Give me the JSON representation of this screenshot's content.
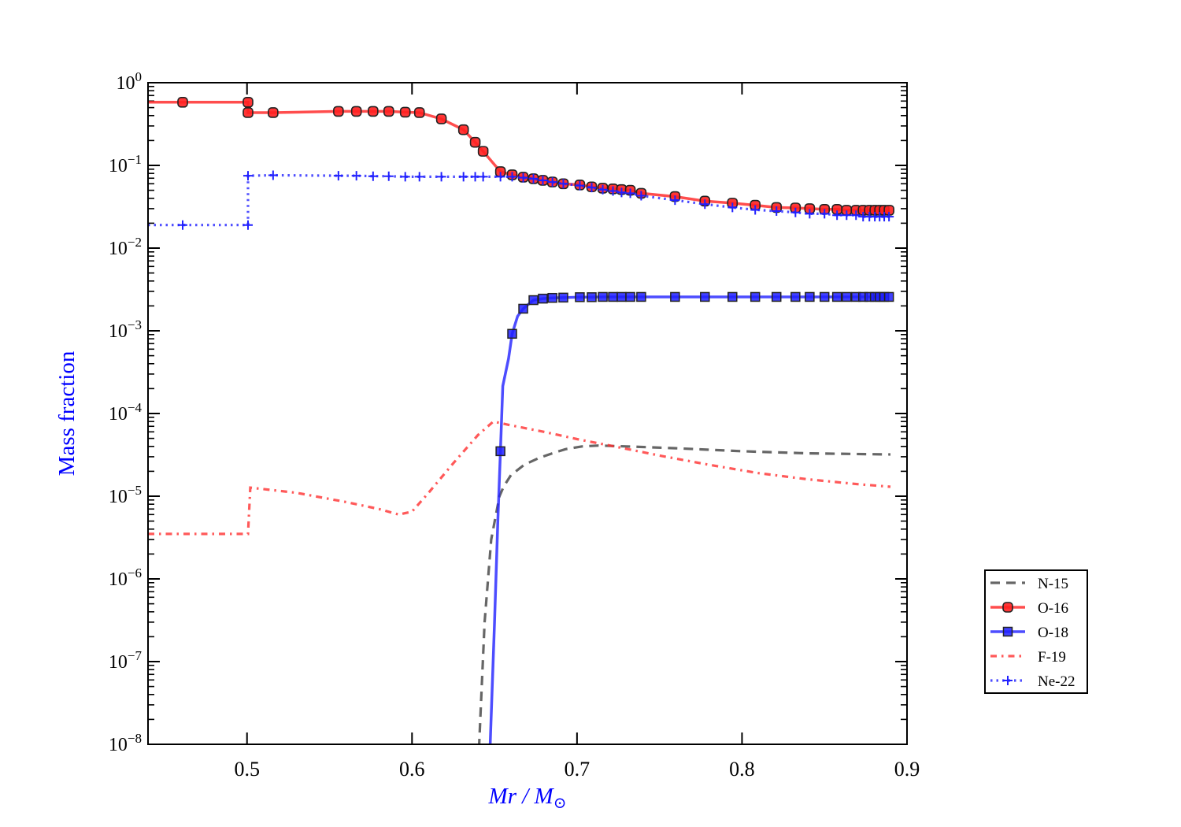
{
  "chart_data": {
    "type": "line",
    "xlabel": "Mr / M",
    "xlabel_sub": "⊙",
    "ylabel": "Mass fraction",
    "label_color": "#0000ff",
    "xlim": [
      0.44,
      0.9
    ],
    "ylim": [
      1e-08,
      1
    ],
    "yscale": "log",
    "xticks": [
      0.5,
      0.6,
      0.7,
      0.8,
      0.9
    ],
    "xtick_labels": [
      "0.5",
      "0.6",
      "0.7",
      "0.8",
      "0.9"
    ],
    "yticks": [
      0,
      -1,
      -2,
      -3,
      -4,
      -5,
      -6,
      -7,
      -8
    ],
    "ytick_labels": [
      "0",
      "−1",
      "−2",
      "−3",
      "−4",
      "−5",
      "−6",
      "−7",
      "−8"
    ],
    "ytick_base": "10",
    "grid": false,
    "legend_placement": "outside-right-bottom",
    "series": [
      {
        "name": "N-15",
        "color": "#404040",
        "style": "dashed",
        "marker": "none",
        "x": [
          0.64,
          0.6407,
          0.644,
          0.648,
          0.653,
          0.6555,
          0.66,
          0.668,
          0.677,
          0.685,
          0.693,
          0.703,
          0.713,
          0.73,
          0.76,
          0.8,
          0.84,
          0.89
        ],
        "y": [
          1e-09,
          1e-08,
          3e-07,
          3e-06,
          1e-05,
          1.3e-05,
          1.8e-05,
          2.4e-05,
          2.9e-05,
          3.3e-05,
          3.7e-05,
          4e-05,
          4.1e-05,
          4e-05,
          3.8e-05,
          3.5e-05,
          3.3e-05,
          3.2e-05
        ]
      },
      {
        "name": "O-16",
        "color": "#ff2020",
        "style": "solid",
        "marker": "circle",
        "x": [
          0.44,
          0.461,
          0.5006,
          0.5006,
          0.5158,
          0.5554,
          0.5663,
          0.5764,
          0.5859,
          0.5959,
          0.6045,
          0.6178,
          0.6312,
          0.6383,
          0.6431,
          0.6536,
          0.6607,
          0.6674,
          0.6736,
          0.6793,
          0.6851,
          0.6917,
          0.7017,
          0.7089,
          0.7156,
          0.7218,
          0.727,
          0.7323,
          0.7389,
          0.7594,
          0.7775,
          0.7942,
          0.808,
          0.8209,
          0.8324,
          0.841,
          0.85,
          0.8576,
          0.8634,
          0.8691,
          0.8734,
          0.8772,
          0.8805,
          0.8834,
          0.8862,
          0.8891
        ],
        "y": [
          0.58,
          0.58,
          0.58,
          0.435,
          0.435,
          0.45,
          0.45,
          0.45,
          0.45,
          0.44,
          0.435,
          0.365,
          0.27,
          0.19,
          0.148,
          0.084,
          0.077,
          0.072,
          0.069,
          0.066,
          0.063,
          0.06,
          0.058,
          0.055,
          0.053,
          0.052,
          0.051,
          0.05,
          0.046,
          0.042,
          0.037,
          0.035,
          0.033,
          0.031,
          0.0306,
          0.03,
          0.0294,
          0.0294,
          0.0287,
          0.0287,
          0.0287,
          0.0287,
          0.0287,
          0.0287,
          0.0287,
          0.0287
        ]
      },
      {
        "name": "O-18",
        "color": "#2020ff",
        "style": "solid",
        "marker": "square",
        "x": [
          0.6465,
          0.6474,
          0.65,
          0.652,
          0.6536,
          0.655,
          0.6585,
          0.6607,
          0.664,
          0.6674,
          0.6736,
          0.6793,
          0.6851,
          0.6917,
          0.7017,
          0.7089,
          0.7156,
          0.7218,
          0.727,
          0.7323,
          0.7389,
          0.7594,
          0.7775,
          0.7942,
          0.808,
          0.8209,
          0.8324,
          0.841,
          0.85,
          0.8576,
          0.8634,
          0.8691,
          0.8734,
          0.8772,
          0.8805,
          0.8834,
          0.8862,
          0.8891
        ],
        "y": [
          1e-09,
          1e-08,
          3e-07,
          5e-06,
          3.5e-05,
          0.000215,
          0.00046,
          0.00092,
          0.0015,
          0.00185,
          0.00235,
          0.00245,
          0.0025,
          0.00252,
          0.00255,
          0.00255,
          0.00257,
          0.00257,
          0.00257,
          0.00257,
          0.00257,
          0.00257,
          0.00257,
          0.00257,
          0.00257,
          0.00257,
          0.00257,
          0.00257,
          0.00257,
          0.00257,
          0.00257,
          0.00257,
          0.00257,
          0.00257,
          0.00257,
          0.00257,
          0.00257,
          0.00257
        ],
        "marker_x": [
          0.6536,
          0.6607,
          0.6674,
          0.6736,
          0.6793,
          0.6851,
          0.6917,
          0.7017,
          0.7089,
          0.7156,
          0.7218,
          0.727,
          0.7323,
          0.7389,
          0.7594,
          0.7775,
          0.7942,
          0.808,
          0.8209,
          0.8324,
          0.841,
          0.85,
          0.8576,
          0.8634,
          0.8691,
          0.8734,
          0.8772,
          0.8805,
          0.8834,
          0.8862,
          0.8891
        ],
        "marker_y": [
          3.5e-05,
          0.00092,
          0.00185,
          0.00235,
          0.00245,
          0.0025,
          0.00252,
          0.00255,
          0.00255,
          0.00257,
          0.00257,
          0.00257,
          0.00257,
          0.00257,
          0.00257,
          0.00257,
          0.00257,
          0.00257,
          0.00257,
          0.00257,
          0.00257,
          0.00257,
          0.00257,
          0.00257,
          0.00257,
          0.00257,
          0.00257,
          0.00257,
          0.00257,
          0.00257,
          0.00257
        ]
      },
      {
        "name": "F-19",
        "color": "#ff3030",
        "style": "dashdotdot",
        "marker": "none",
        "x": [
          0.44,
          0.5006,
          0.502,
          0.53,
          0.56,
          0.58,
          0.592,
          0.6,
          0.61,
          0.625,
          0.64,
          0.6493,
          0.66,
          0.68,
          0.7,
          0.72,
          0.75,
          0.78,
          0.81,
          0.84,
          0.87,
          0.89
        ],
        "y": [
          3.5e-06,
          3.5e-06,
          1.27e-05,
          1.1e-05,
          8.5e-06,
          7e-06,
          6e-06,
          6.5e-06,
          1.1e-05,
          2.5e-05,
          5.5e-05,
          8e-05,
          7.2e-05,
          6e-05,
          4.9e-05,
          4.1e-05,
          3.1e-05,
          2.4e-05,
          1.9e-05,
          1.6e-05,
          1.4e-05,
          1.3e-05
        ]
      },
      {
        "name": "Ne-22",
        "color": "#2020ff",
        "style": "dotted",
        "marker": "plus",
        "x": [
          0.44,
          0.461,
          0.5006,
          0.5006,
          0.5158,
          0.5554,
          0.5663,
          0.5764,
          0.5859,
          0.5959,
          0.6045,
          0.6178,
          0.6312,
          0.6383,
          0.6431,
          0.6536,
          0.6607,
          0.6674,
          0.6736,
          0.6793,
          0.6851,
          0.6917,
          0.7017,
          0.7089,
          0.7156,
          0.7218,
          0.727,
          0.7323,
          0.7389,
          0.7594,
          0.7775,
          0.7942,
          0.808,
          0.8209,
          0.8324,
          0.841,
          0.85,
          0.8576,
          0.8634,
          0.8691,
          0.8734,
          0.8772,
          0.8805,
          0.8834,
          0.8862,
          0.8891
        ],
        "y": [
          0.019,
          0.019,
          0.019,
          0.075,
          0.076,
          0.075,
          0.075,
          0.074,
          0.074,
          0.073,
          0.073,
          0.073,
          0.073,
          0.073,
          0.073,
          0.073,
          0.073,
          0.071,
          0.069,
          0.066,
          0.063,
          0.06,
          0.057,
          0.054,
          0.051,
          0.049,
          0.047,
          0.046,
          0.043,
          0.038,
          0.034,
          0.031,
          0.029,
          0.028,
          0.027,
          0.026,
          0.026,
          0.025,
          0.025,
          0.025,
          0.024,
          0.024,
          0.024,
          0.024,
          0.024,
          0.024
        ]
      }
    ]
  }
}
